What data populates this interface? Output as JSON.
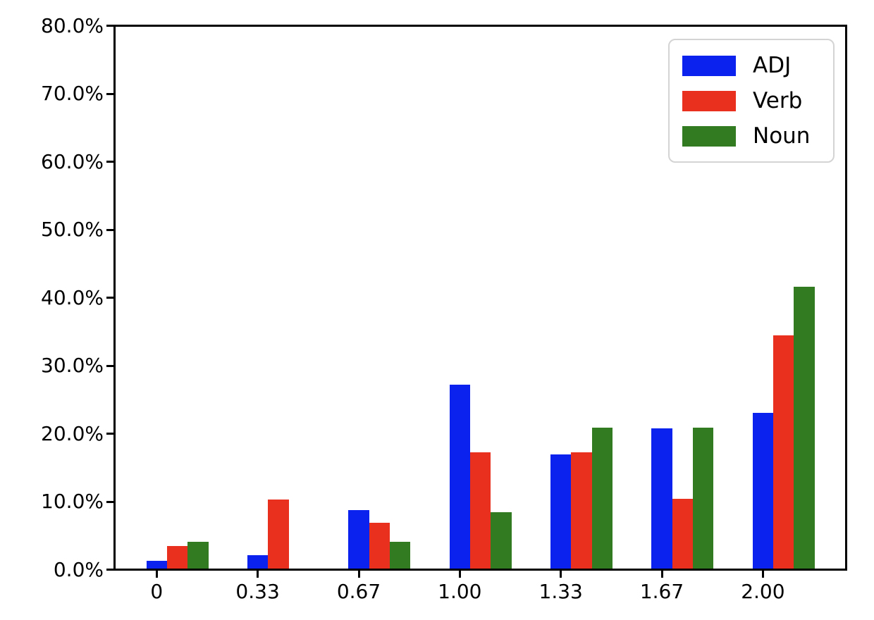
{
  "chart_data": {
    "type": "bar",
    "title": "",
    "xlabel": "",
    "ylabel": "",
    "unit": "%",
    "categories": [
      "0",
      "0.33",
      "0.67",
      "1.00",
      "1.33",
      "1.67",
      "2.00"
    ],
    "series": [
      {
        "name": "ADJ",
        "color": "#0b22ee",
        "values": [
          1.1,
          2.0,
          8.6,
          27.2,
          16.9,
          20.7,
          23.0
        ]
      },
      {
        "name": "Verb",
        "color": "#e9301f",
        "values": [
          3.3,
          10.2,
          6.8,
          17.2,
          17.2,
          10.3,
          34.4
        ]
      },
      {
        "name": "Noun",
        "color": "#337b20",
        "values": [
          4.0,
          0.0,
          4.0,
          8.3,
          20.8,
          20.8,
          41.6
        ]
      }
    ],
    "ylim": [
      0,
      80
    ],
    "ytick_step": 10,
    "ytick_labels": [
      "0.0%",
      "10.0%",
      "20.0%",
      "30.0%",
      "40.0%",
      "50.0%",
      "60.0%",
      "70.0%",
      "80.0%"
    ],
    "grid": false,
    "legend_position": "upper right"
  }
}
